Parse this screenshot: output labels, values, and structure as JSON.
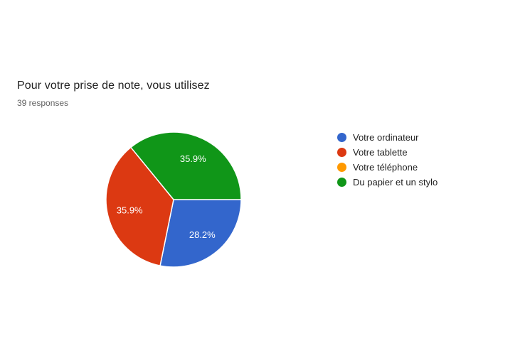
{
  "header": {
    "title": "Pour votre prise de note, vous utilisez",
    "responses_label": "39 responses"
  },
  "chart_data": {
    "type": "pie",
    "title": "Pour votre prise de note, vous utilisez",
    "subtitle": "39 responses",
    "start_angle_deg": 0,
    "direction": "clockwise",
    "legend_position": "right",
    "slice_label_color": "#ffffff",
    "slices": [
      {
        "label": "Votre ordinateur",
        "percent": 28.2,
        "display": "28.2%",
        "color": "#3366cc"
      },
      {
        "label": "Votre tablette",
        "percent": 35.9,
        "display": "35.9%",
        "color": "#dc3912"
      },
      {
        "label": "Votre téléphone",
        "percent": 0,
        "display": "",
        "color": "#ff9900"
      },
      {
        "label": "Du papier et un stylo",
        "percent": 35.9,
        "display": "35.9%",
        "color": "#109618"
      }
    ]
  }
}
